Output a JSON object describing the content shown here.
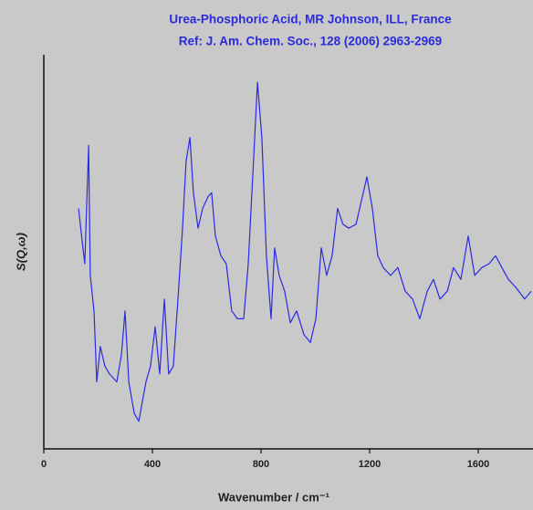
{
  "chart_data": {
    "type": "line",
    "title": "Urea-Phosphoric Acid, MR Johnson, ILL, France",
    "subtitle": "Ref: J. Am. Chem. Soc., 128 (2006) 2963-2969",
    "x_label": "Wavenumber / cm⁻¹",
    "y_label": "S(Q,ω)",
    "color": "#2a2ae6",
    "xlim": [
      0,
      1800
    ],
    "xticks": [
      0,
      400,
      800,
      1200,
      1600
    ],
    "ylim": [
      0,
      100
    ],
    "x": [
      128,
      141,
      151,
      165,
      171,
      185,
      195,
      208,
      225,
      242,
      269,
      286,
      299,
      313,
      333,
      350,
      376,
      393,
      410,
      427,
      444,
      460,
      477,
      494,
      511,
      524,
      538,
      551,
      568,
      585,
      605,
      618,
      632,
      652,
      672,
      692,
      713,
      736,
      753,
      770,
      787,
      803,
      820,
      837,
      850,
      867,
      887,
      908,
      931,
      958,
      982,
      1002,
      1022,
      1042,
      1062,
      1082,
      1102,
      1123,
      1150,
      1170,
      1190,
      1210,
      1230,
      1250,
      1277,
      1304,
      1331,
      1358,
      1385,
      1412,
      1435,
      1459,
      1486,
      1509,
      1536,
      1563,
      1587,
      1613,
      1640,
      1664,
      1687,
      1711,
      1738,
      1771,
      1795
    ],
    "values": [
      61,
      53,
      47,
      77,
      44,
      35,
      17,
      26,
      21,
      19,
      17,
      24,
      35,
      17,
      9,
      7,
      17,
      21,
      31,
      19,
      38,
      19,
      21,
      38,
      56,
      73,
      79,
      65,
      56,
      61,
      64,
      65,
      54,
      49,
      47,
      35,
      33,
      33,
      47,
      70,
      93,
      79,
      49,
      33,
      51,
      44,
      40,
      32,
      35,
      29,
      27,
      33,
      51,
      44,
      49,
      61,
      57,
      56,
      57,
      63,
      69,
      61,
      49,
      46,
      44,
      46,
      40,
      38,
      33,
      40,
      43,
      38,
      40,
      46,
      43,
      54,
      44,
      46,
      47,
      49,
      46,
      43,
      41,
      38,
      40
    ]
  }
}
